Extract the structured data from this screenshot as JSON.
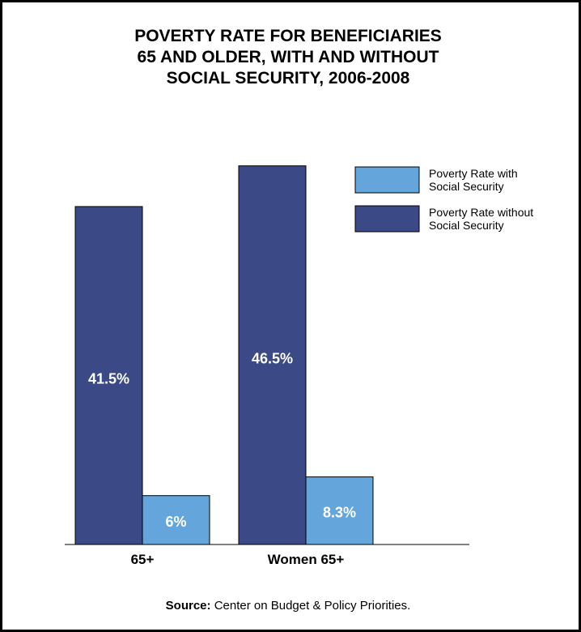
{
  "chart_data": {
    "type": "bar",
    "title_lines": [
      "POVERTY RATE FOR BENEFICIARIES",
      "65 AND OLDER, WITH AND WITHOUT",
      "SOCIAL SECURITY, 2006-2008"
    ],
    "categories": [
      "65+",
      "Women 65+"
    ],
    "series": [
      {
        "name": "Poverty Rate without Social Security",
        "values": [
          41.5,
          46.5
        ],
        "labels": [
          "41.5%",
          "46.5%"
        ],
        "color": "#3b4a86"
      },
      {
        "name": "Poverty Rate with Social Security",
        "values": [
          6,
          8.3
        ],
        "labels": [
          "6%",
          "8.3%"
        ],
        "color": "#64a6dc"
      }
    ],
    "legend": {
      "position": "top-right",
      "items": [
        {
          "line1": "Poverty Rate with",
          "line2": "Social Security",
          "color": "#64a6dc"
        },
        {
          "line1": "Poverty Rate without",
          "line2": "Social Security",
          "color": "#3b4a86"
        }
      ]
    },
    "ylim": [
      0,
      50
    ],
    "grid": false,
    "source_label": "Source:",
    "source_text": " Center on Budget & Policy Priorities."
  }
}
